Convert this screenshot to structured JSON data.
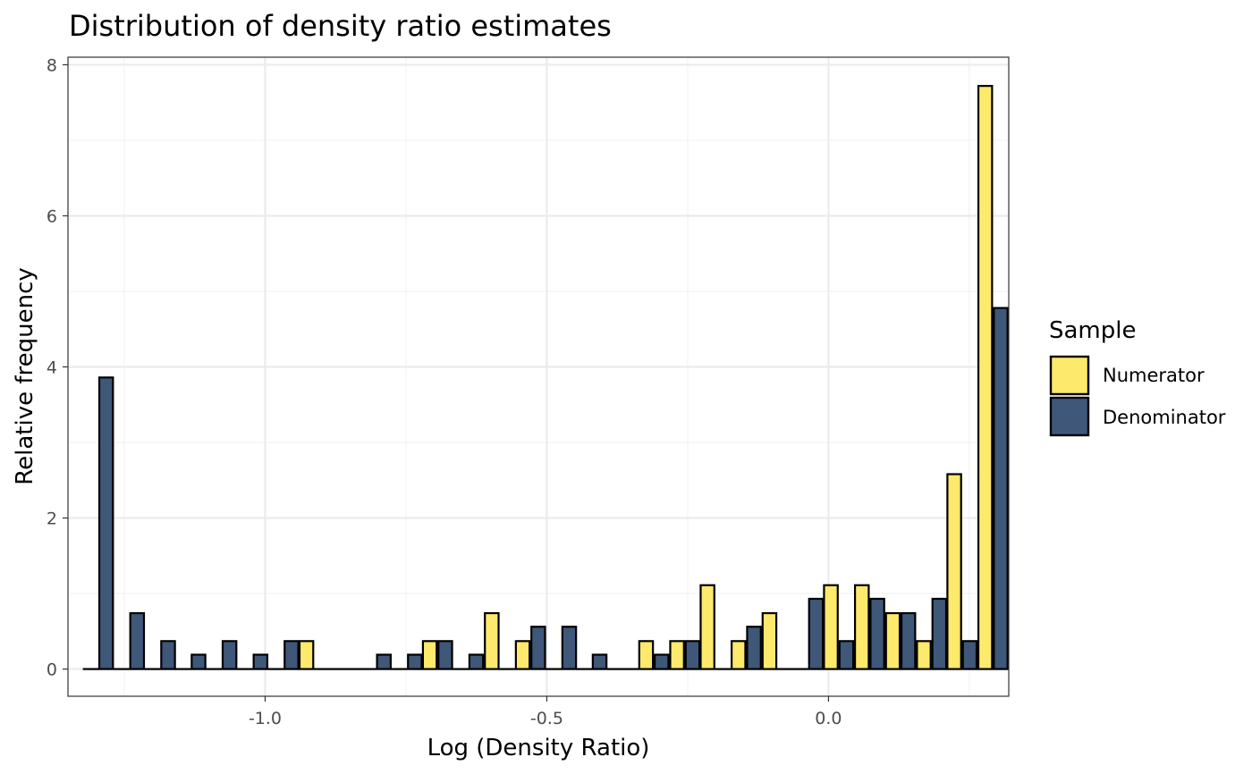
{
  "chart_data": {
    "type": "bar",
    "title": "Distribution of density ratio estimates",
    "xlabel": "Log (Density Ratio)",
    "ylabel": "Relative frequency",
    "xlim": [
      -1.35,
      0.32
    ],
    "ylim": [
      -0.36,
      8.1
    ],
    "xticks": [
      -1.0,
      -0.5,
      0.0
    ],
    "xtick_labels": [
      "-1.0",
      "-0.5",
      "0.0"
    ],
    "yticks": [
      0,
      2,
      4,
      6,
      8
    ],
    "ytick_labels": [
      "0",
      "2",
      "4",
      "6",
      "8"
    ],
    "grid": true,
    "legend": {
      "title": "Sample",
      "position": "right",
      "entries": [
        "Numerator",
        "Denominator"
      ]
    },
    "series": [
      {
        "name": "Numerator",
        "color": "#FDE96B",
        "x": [
          -1.296,
          -1.241,
          -1.186,
          -1.132,
          -1.077,
          -1.022,
          -0.967,
          -0.913,
          -0.858,
          -0.803,
          -0.748,
          -0.694,
          -0.639,
          -0.584,
          -0.529,
          -0.474,
          -0.42,
          -0.365,
          -0.31,
          -0.255,
          -0.201,
          -0.146,
          -0.091,
          -0.036,
          0.018,
          0.073,
          0.128,
          0.183,
          0.237,
          0.292
        ],
        "values": [
          0,
          0,
          0,
          0,
          0,
          0,
          0,
          0.37,
          0,
          0,
          0,
          0.37,
          0,
          0.74,
          0.37,
          0,
          0,
          0,
          0.37,
          0.37,
          1.11,
          0.37,
          0.74,
          0,
          1.11,
          1.11,
          0.74,
          0.37,
          2.58,
          7.72
        ]
      },
      {
        "name": "Denominator",
        "color": "#3F5778",
        "x": [
          -1.296,
          -1.241,
          -1.186,
          -1.132,
          -1.077,
          -1.022,
          -0.967,
          -0.913,
          -0.858,
          -0.803,
          -0.748,
          -0.694,
          -0.639,
          -0.584,
          -0.529,
          -0.474,
          -0.42,
          -0.365,
          -0.31,
          -0.255,
          -0.201,
          -0.146,
          -0.091,
          -0.036,
          0.018,
          0.073,
          0.128,
          0.183,
          0.237,
          0.292
        ],
        "values": [
          3.86,
          0.74,
          0.37,
          0.19,
          0.37,
          0.19,
          0.37,
          0,
          0,
          0.19,
          0.19,
          0.37,
          0.19,
          0,
          0.56,
          0.56,
          0.19,
          0,
          0.19,
          0.37,
          0,
          0.56,
          0,
          0.93,
          0.37,
          0.93,
          0.74,
          0.93,
          0.37,
          4.78
        ]
      }
    ]
  }
}
